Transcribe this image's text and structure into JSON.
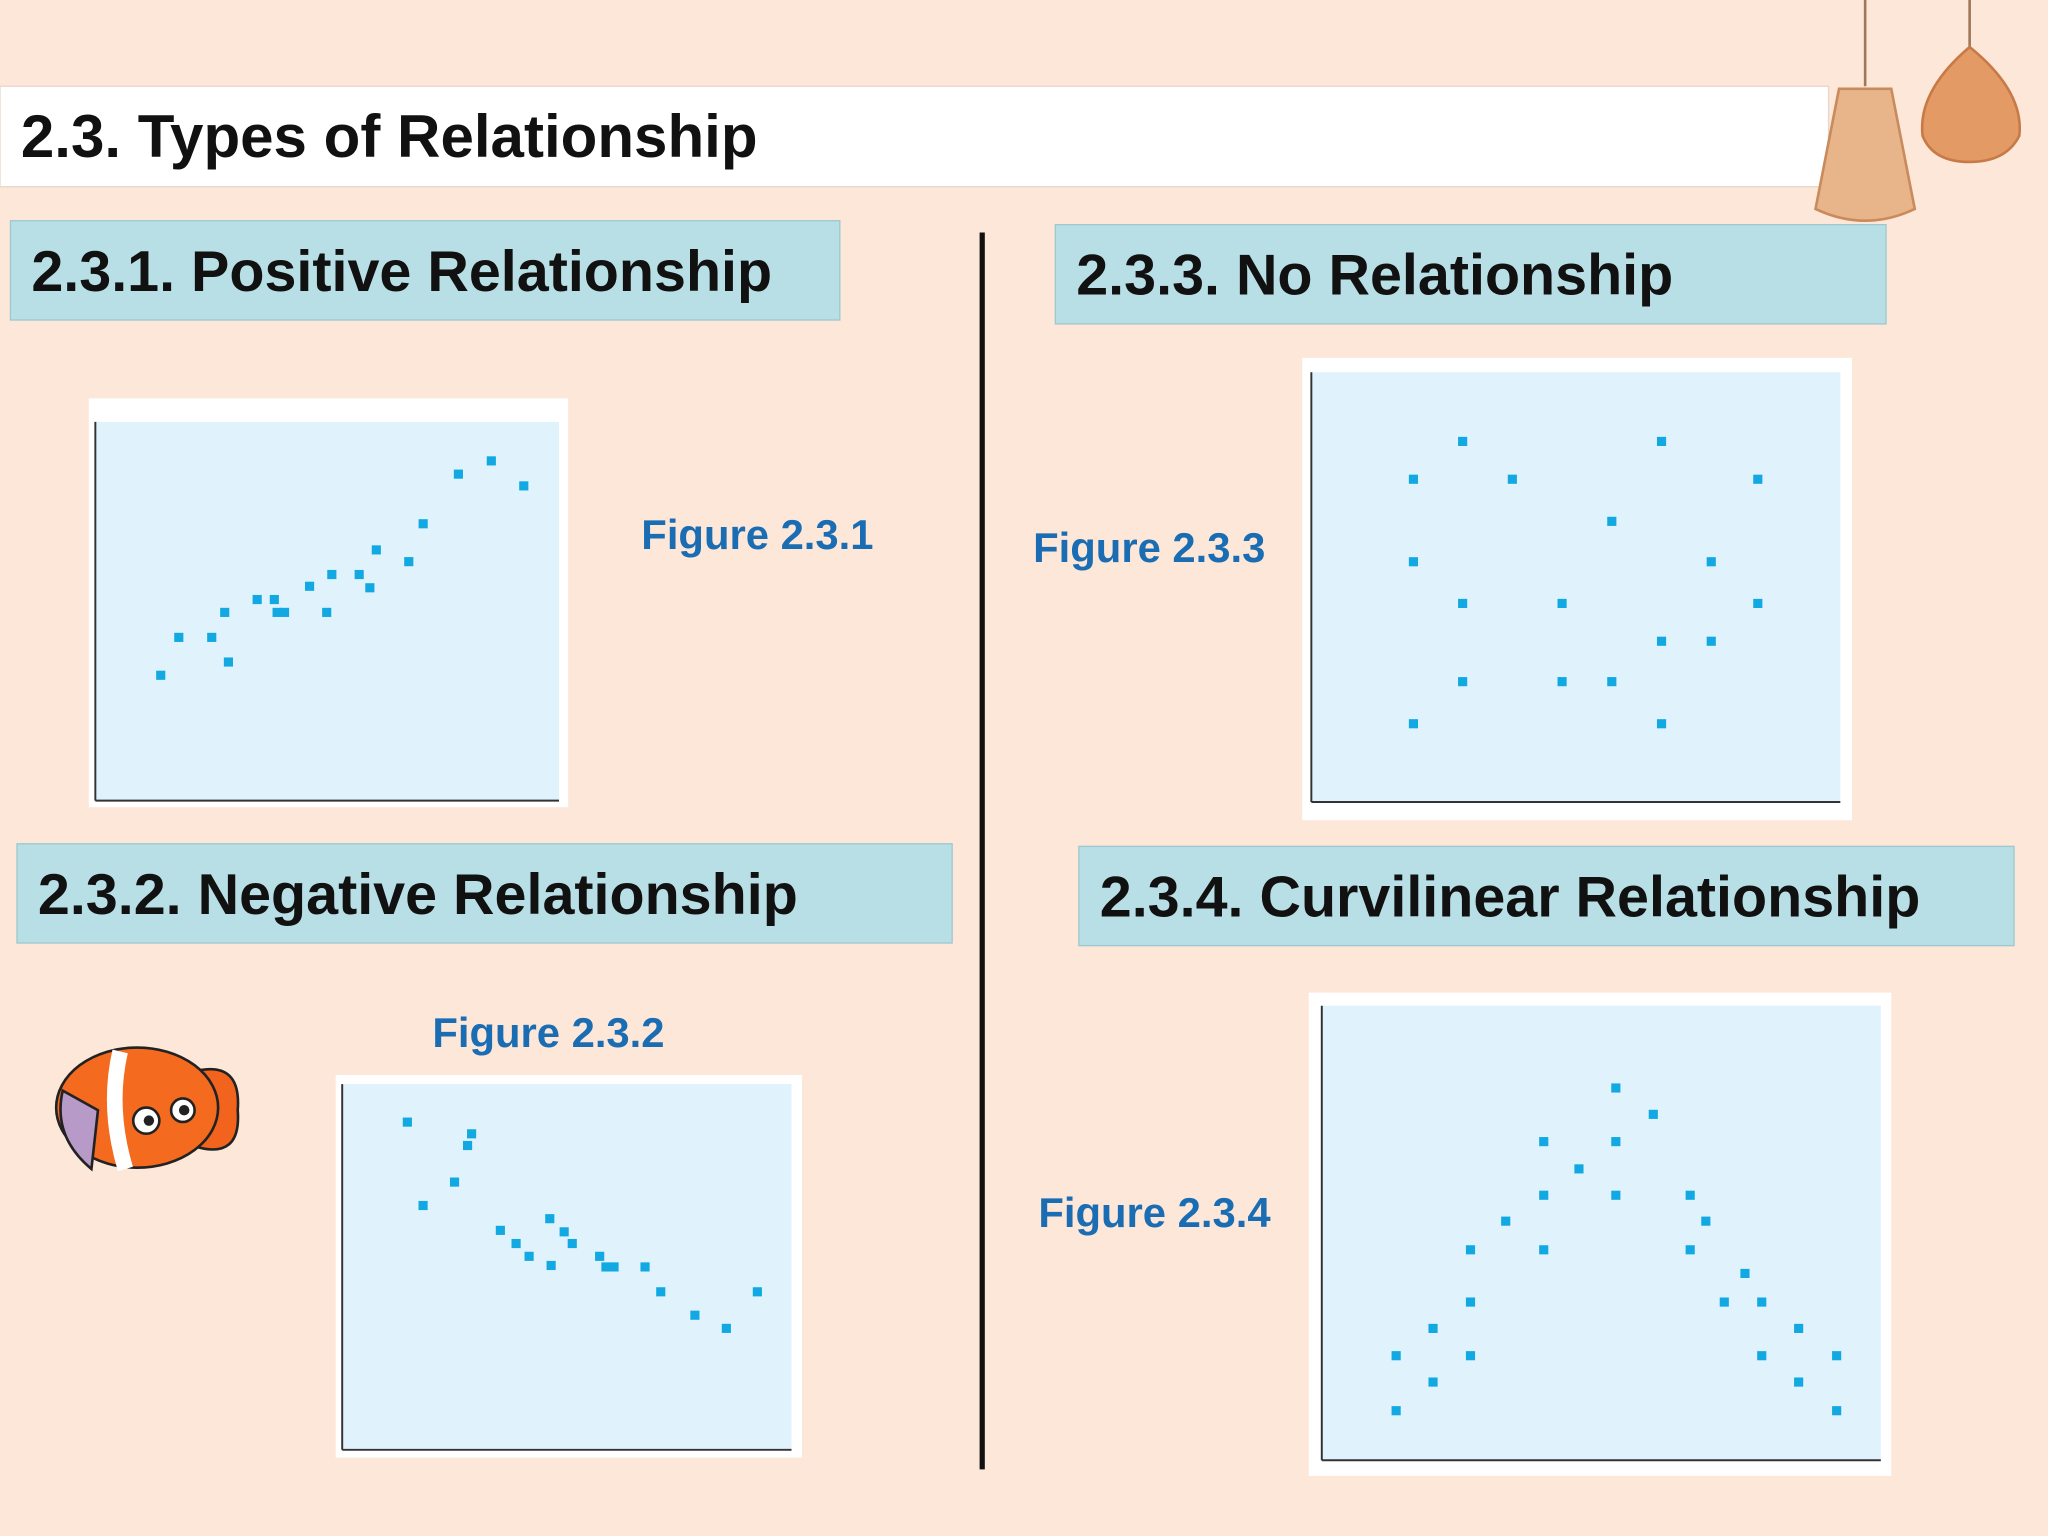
{
  "title": "2.3. Types of Relationship",
  "sections": [
    {
      "heading": "2.3.1. Positive Relationship"
    },
    {
      "heading": "2.3.2. Negative Relationship"
    },
    {
      "heading": "2.3.3. No Relationship"
    },
    {
      "heading": "2.3.4. Curvilinear Relationship"
    }
  ],
  "chart_data": [
    {
      "type": "scatter",
      "title": "Figure 2.3.1",
      "color": "#12a9e3",
      "xlim": [
        0,
        10
      ],
      "ylim": [
        0,
        10
      ],
      "x": [
        1.41,
        1.8,
        2.51,
        2.79,
        2.87,
        3.49,
        3.86,
        3.92,
        4.08,
        4.62,
        4.99,
        5.1,
        5.69,
        5.92,
        6.06,
        6.76,
        7.07,
        7.83,
        8.54,
        9.24
      ],
      "values": [
        3.31,
        4.31,
        4.31,
        4.97,
        3.66,
        5.31,
        5.31,
        4.97,
        4.97,
        5.66,
        4.97,
        5.97,
        5.97,
        5.62,
        6.62,
        6.31,
        7.31,
        8.62,
        8.97,
        8.31
      ]
    },
    {
      "type": "scatter",
      "title": "Figure 2.3.2",
      "color": "#12a9e3",
      "xlim": [
        0,
        10
      ],
      "ylim": [
        0,
        10
      ],
      "x": [
        1.45,
        1.8,
        2.5,
        2.79,
        2.88,
        3.52,
        3.87,
        4.16,
        4.62,
        4.65,
        4.94,
        5.12,
        5.73,
        5.87,
        6.05,
        6.74,
        7.09,
        7.85,
        8.55,
        9.24
      ],
      "values": [
        8.96,
        6.68,
        7.32,
        8.32,
        8.64,
        6.0,
        5.64,
        5.29,
        6.32,
        5.04,
        5.96,
        5.64,
        5.29,
        5.0,
        5.0,
        5.0,
        4.32,
        3.68,
        3.32,
        4.32
      ]
    },
    {
      "type": "scatter",
      "title": "Figure 2.3.3",
      "color": "#12a9e3",
      "xlim": [
        0,
        10
      ],
      "ylim": [
        0,
        10
      ],
      "x": [
        1.93,
        1.93,
        1.93,
        2.86,
        2.86,
        2.86,
        3.8,
        4.74,
        4.74,
        5.68,
        5.68,
        6.62,
        6.62,
        6.62,
        7.56,
        7.56,
        8.44,
        8.44
      ],
      "values": [
        7.51,
        5.59,
        1.82,
        8.39,
        4.62,
        2.8,
        7.51,
        4.62,
        2.8,
        6.53,
        2.8,
        8.39,
        3.74,
        1.82,
        5.59,
        3.74,
        7.51,
        4.62
      ]
    },
    {
      "type": "scatter",
      "title": "Figure 2.3.4",
      "color": "#12a9e3",
      "xlim": [
        0,
        10
      ],
      "ylim": [
        0,
        10
      ],
      "x": [
        1.33,
        1.33,
        1.99,
        1.99,
        2.66,
        2.66,
        2.66,
        3.29,
        3.97,
        3.97,
        3.97,
        4.6,
        5.26,
        5.26,
        5.26,
        5.93,
        6.59,
        6.59,
        6.87,
        7.57,
        7.2,
        7.87,
        7.87,
        8.53,
        8.53,
        9.21,
        9.21
      ],
      "values": [
        2.3,
        1.09,
        2.9,
        1.72,
        4.63,
        3.48,
        2.3,
        5.26,
        7.01,
        5.83,
        4.63,
        6.41,
        8.19,
        7.01,
        5.83,
        7.61,
        5.83,
        4.63,
        5.26,
        4.11,
        3.48,
        3.48,
        2.3,
        2.9,
        1.72,
        2.3,
        1.09
      ]
    }
  ]
}
